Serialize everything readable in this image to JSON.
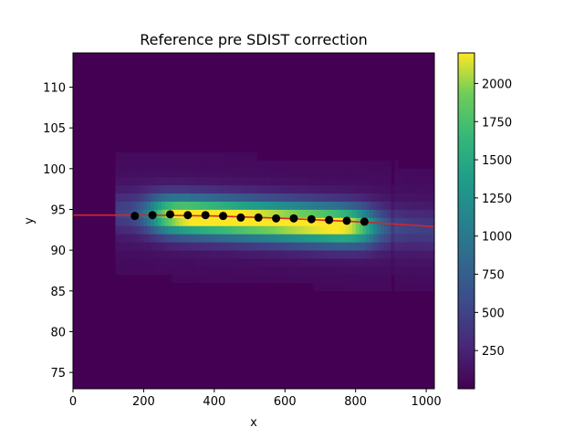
{
  "chart_data": {
    "type": "heatmap",
    "title": "Reference pre SDIST correction",
    "xlabel": "x",
    "ylabel": "y",
    "xlim": [
      0,
      1023
    ],
    "ylim": [
      73,
      114.2
    ],
    "x_ticks": [
      0,
      200,
      400,
      600,
      800,
      1000
    ],
    "y_ticks": [
      75,
      80,
      85,
      90,
      95,
      100,
      105,
      110
    ],
    "colormap": "viridis",
    "colorbar": {
      "min": 0,
      "max": 2200,
      "ticks": [
        250,
        500,
        750,
        1000,
        1250,
        1500,
        1750,
        2000
      ]
    },
    "trace_band": {
      "x_start": 120,
      "x_end": 1023,
      "peak_y": 94,
      "peak_value": 2200
    },
    "points": {
      "color": "#000000",
      "x": [
        175,
        225,
        275,
        325,
        375,
        425,
        475,
        525,
        575,
        625,
        675,
        725,
        775,
        825
      ],
      "y": [
        94.2,
        94.3,
        94.4,
        94.3,
        94.3,
        94.2,
        94.0,
        94.0,
        93.9,
        93.9,
        93.8,
        93.7,
        93.6,
        93.5
      ]
    },
    "fit_line": {
      "color": "#d62728",
      "x": [
        0,
        200,
        400,
        600,
        800,
        1023
      ],
      "y": [
        94.3,
        94.3,
        94.2,
        93.9,
        93.5,
        92.9
      ]
    }
  }
}
